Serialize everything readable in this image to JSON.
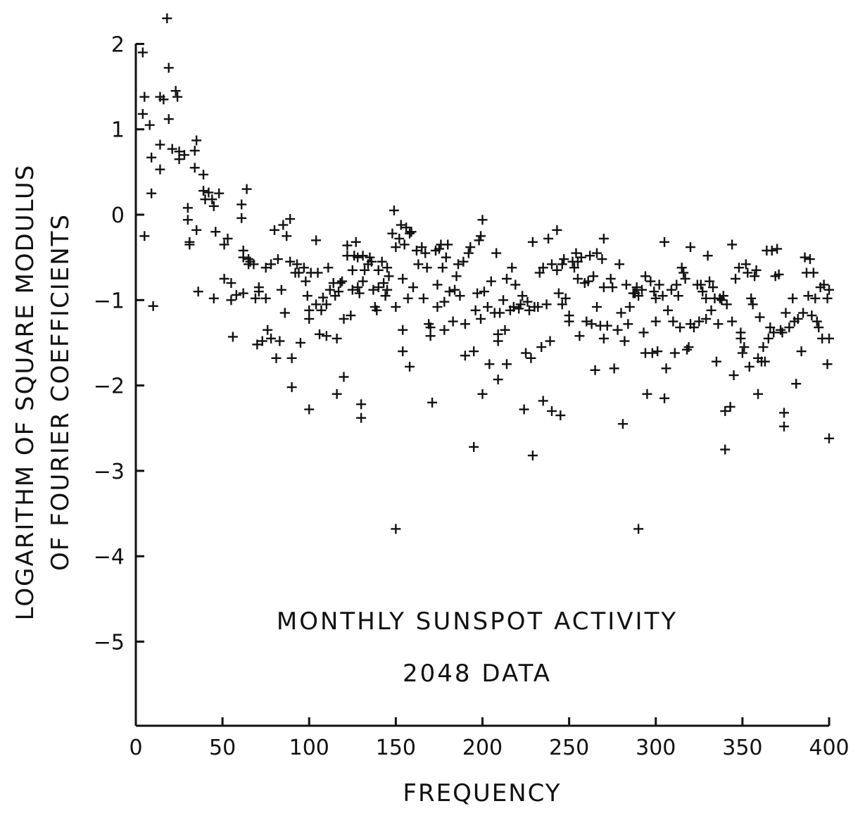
{
  "chart_data": {
    "type": "scatter",
    "marker": "plus",
    "xlabel": "FREQUENCY",
    "ylabel_lines": [
      "LOGARITHM OF SQUARE MODULUS",
      "OF FOURIER COEFFICIENTS"
    ],
    "annotations": [
      "MONTHLY SUNSPOT ACTIVITY",
      "2048 DATA"
    ],
    "xlim": [
      0,
      400
    ],
    "ylim": [
      -5.9,
      2.1
    ],
    "xticks": [
      0,
      50,
      100,
      150,
      200,
      250,
      300,
      350,
      400
    ],
    "xtick_labels": [
      "0",
      "50",
      "100",
      "150",
      "200",
      "250",
      "300",
      "350",
      "400"
    ],
    "yticks": [
      2,
      1,
      0,
      -1,
      -2,
      -3,
      -4,
      -5
    ],
    "ytick_labels": [
      "2",
      "1",
      "0",
      "−1",
      "−2",
      "−3",
      "−4",
      "−5"
    ],
    "grid": false,
    "points": [
      [
        4,
        1.9
      ],
      [
        4,
        1.18
      ],
      [
        5,
        1.38
      ],
      [
        5,
        -0.25
      ],
      [
        8,
        1.05
      ],
      [
        9,
        0.67
      ],
      [
        9,
        0.25
      ],
      [
        10,
        -1.07
      ],
      [
        14,
        1.38
      ],
      [
        14,
        0.82
      ],
      [
        14,
        0.53
      ],
      [
        16,
        1.35
      ],
      [
        18,
        2.3
      ],
      [
        19,
        1.72
      ],
      [
        19,
        1.12
      ],
      [
        21,
        0.77
      ],
      [
        23,
        1.45
      ],
      [
        24,
        1.38
      ],
      [
        25,
        0.65
      ],
      [
        25,
        0.74
      ],
      [
        28,
        0.7
      ],
      [
        30,
        0.08
      ],
      [
        30,
        -0.06
      ],
      [
        31,
        -0.32
      ],
      [
        31,
        -0.35
      ],
      [
        34,
        0.75
      ],
      [
        34,
        0.55
      ],
      [
        35,
        0.87
      ],
      [
        35,
        -0.18
      ],
      [
        36,
        -0.9
      ],
      [
        39,
        0.47
      ],
      [
        39,
        0.28
      ],
      [
        40,
        0.18
      ],
      [
        42,
        0.26
      ],
      [
        44,
        0.18
      ],
      [
        45,
        0.1
      ],
      [
        45,
        -0.98
      ],
      [
        46,
        -0.2
      ],
      [
        48,
        0.25
      ],
      [
        51,
        -0.35
      ],
      [
        51,
        -0.75
      ],
      [
        53,
        -0.28
      ],
      [
        55,
        -0.8
      ],
      [
        55,
        -1.0
      ],
      [
        56,
        -1.43
      ],
      [
        58,
        -0.94
      ],
      [
        61,
        0.12
      ],
      [
        61,
        -0.04
      ],
      [
        62,
        -0.42
      ],
      [
        62,
        -0.5
      ],
      [
        62,
        -0.92
      ],
      [
        64,
        0.3
      ],
      [
        65,
        -0.52
      ],
      [
        65,
        -0.58
      ],
      [
        66,
        -0.55
      ],
      [
        68,
        -0.58
      ],
      [
        69,
        -0.98
      ],
      [
        70,
        -1.52
      ],
      [
        71,
        -0.85
      ],
      [
        71,
        -0.9
      ],
      [
        73,
        -1.48
      ],
      [
        75,
        -0.62
      ],
      [
        75,
        -0.98
      ],
      [
        76,
        -1.35
      ],
      [
        78,
        -0.58
      ],
      [
        78,
        -1.45
      ],
      [
        80,
        -0.18
      ],
      [
        81,
        -1.68
      ],
      [
        82,
        -0.52
      ],
      [
        83,
        -1.48
      ],
      [
        84,
        -0.88
      ],
      [
        85,
        -0.12
      ],
      [
        86,
        -1.15
      ],
      [
        87,
        -0.25
      ],
      [
        89,
        -0.05
      ],
      [
        89,
        -0.55
      ],
      [
        90,
        -1.68
      ],
      [
        90,
        -2.02
      ],
      [
        92,
        -0.68
      ],
      [
        93,
        -0.58
      ],
      [
        94,
        -0.68
      ],
      [
        95,
        -1.5
      ],
      [
        97,
        -0.62
      ],
      [
        98,
        -0.78
      ],
      [
        99,
        -0.95
      ],
      [
        100,
        -1.12
      ],
      [
        100,
        -1.22
      ],
      [
        100,
        -2.28
      ],
      [
        101,
        -0.68
      ],
      [
        104,
        -0.3
      ],
      [
        104,
        -1.05
      ],
      [
        105,
        -0.68
      ],
      [
        106,
        -1.4
      ],
      [
        107,
        -1.12
      ],
      [
        108,
        -0.97
      ],
      [
        110,
        -1.42
      ],
      [
        110,
        -1.05
      ],
      [
        111,
        -0.62
      ],
      [
        112,
        -0.88
      ],
      [
        114,
        -0.8
      ],
      [
        115,
        -0.95
      ],
      [
        116,
        -1.45
      ],
      [
        116,
        -2.1
      ],
      [
        117,
        -0.9
      ],
      [
        118,
        -0.8
      ],
      [
        119,
        -0.78
      ],
      [
        120,
        -1.22
      ],
      [
        120,
        -1.9
      ],
      [
        122,
        -0.36
      ],
      [
        122,
        -0.48
      ],
      [
        124,
        -1.18
      ],
      [
        125,
        -0.65
      ],
      [
        125,
        -0.88
      ],
      [
        126,
        -0.48
      ],
      [
        127,
        -0.32
      ],
      [
        128,
        -0.5
      ],
      [
        128,
        -0.85
      ],
      [
        129,
        -0.92
      ],
      [
        130,
        -2.22
      ],
      [
        130,
        -2.38
      ],
      [
        131,
        -0.78
      ],
      [
        131,
        -0.48
      ],
      [
        132,
        -0.65
      ],
      [
        134,
        -0.58
      ],
      [
        135,
        -0.5
      ],
      [
        136,
        -0.55
      ],
      [
        137,
        -0.88
      ],
      [
        138,
        -1.08
      ],
      [
        139,
        -1.12
      ],
      [
        140,
        -0.85
      ],
      [
        140,
        -0.65
      ],
      [
        142,
        -0.55
      ],
      [
        143,
        -0.8
      ],
      [
        144,
        -0.95
      ],
      [
        145,
        -0.88
      ],
      [
        145,
        -0.62
      ],
      [
        146,
        -0.72
      ],
      [
        148,
        -0.22
      ],
      [
        149,
        0.05
      ],
      [
        150,
        -0.38
      ],
      [
        150,
        -1.08
      ],
      [
        150,
        -3.68
      ],
      [
        152,
        -0.28
      ],
      [
        153,
        -0.12
      ],
      [
        154,
        -0.75
      ],
      [
        154,
        -1.35
      ],
      [
        154,
        -1.6
      ],
      [
        155,
        -0.35
      ],
      [
        156,
        -0.15
      ],
      [
        157,
        -0.98
      ],
      [
        158,
        -0.22
      ],
      [
        158,
        -1.78
      ],
      [
        159,
        -0.2
      ],
      [
        160,
        -0.85
      ],
      [
        162,
        -0.42
      ],
      [
        163,
        -0.58
      ],
      [
        165,
        -0.38
      ],
      [
        166,
        -0.98
      ],
      [
        167,
        -0.45
      ],
      [
        168,
        -0.62
      ],
      [
        169,
        -1.28
      ],
      [
        170,
        -1.32
      ],
      [
        170,
        -1.42
      ],
      [
        171,
        -2.2
      ],
      [
        173,
        -0.42
      ],
      [
        174,
        -0.82
      ],
      [
        174,
        -1.08
      ],
      [
        175,
        -0.4
      ],
      [
        176,
        -0.35
      ],
      [
        177,
        -0.62
      ],
      [
        178,
        -1.02
      ],
      [
        178,
        -1.35
      ],
      [
        179,
        -0.5
      ],
      [
        180,
        -0.35
      ],
      [
        181,
        -0.9
      ],
      [
        183,
        -1.25
      ],
      [
        184,
        -0.88
      ],
      [
        185,
        -0.72
      ],
      [
        186,
        -0.58
      ],
      [
        187,
        -0.95
      ],
      [
        189,
        -0.55
      ],
      [
        190,
        -1.65
      ],
      [
        190,
        -1.28
      ],
      [
        192,
        -0.45
      ],
      [
        193,
        -0.38
      ],
      [
        195,
        -1.6
      ],
      [
        195,
        -2.72
      ],
      [
        196,
        -1.12
      ],
      [
        197,
        -0.92
      ],
      [
        198,
        -0.3
      ],
      [
        199,
        -0.25
      ],
      [
        199,
        -1.22
      ],
      [
        200,
        -0.06
      ],
      [
        200,
        -2.1
      ],
      [
        201,
        -0.9
      ],
      [
        203,
        -1.08
      ],
      [
        204,
        -1.75
      ],
      [
        205,
        -0.78
      ],
      [
        207,
        -1.15
      ],
      [
        208,
        -0.45
      ],
      [
        209,
        -1.4
      ],
      [
        209,
        -1.48
      ],
      [
        209,
        -1.93
      ],
      [
        210,
        -1.15
      ],
      [
        212,
        -1.0
      ],
      [
        213,
        -1.35
      ],
      [
        214,
        -1.75
      ],
      [
        214,
        -0.75
      ],
      [
        216,
        -1.12
      ],
      [
        217,
        -0.62
      ],
      [
        218,
        -1.08
      ],
      [
        219,
        -0.82
      ],
      [
        221,
        -1.1
      ],
      [
        222,
        -1.05
      ],
      [
        223,
        -0.95
      ],
      [
        224,
        -2.28
      ],
      [
        225,
        -1.62
      ],
      [
        226,
        -1.02
      ],
      [
        227,
        -1.12
      ],
      [
        228,
        -1.68
      ],
      [
        229,
        -0.32
      ],
      [
        229,
        -2.82
      ],
      [
        230,
        -1.08
      ],
      [
        232,
        -1.08
      ],
      [
        233,
        -0.68
      ],
      [
        234,
        -1.55
      ],
      [
        235,
        -0.62
      ],
      [
        235,
        -2.18
      ],
      [
        237,
        -1.05
      ],
      [
        238,
        -0.28
      ],
      [
        239,
        -1.48
      ],
      [
        240,
        -0.58
      ],
      [
        240,
        -2.3
      ],
      [
        243,
        -0.18
      ],
      [
        243,
        -0.65
      ],
      [
        244,
        -0.92
      ],
      [
        245,
        -2.35
      ],
      [
        246,
        -0.58
      ],
      [
        246,
        -1.05
      ],
      [
        247,
        -0.52
      ],
      [
        248,
        -0.98
      ],
      [
        250,
        -1.25
      ],
      [
        250,
        -1.18
      ],
      [
        252,
        -0.55
      ],
      [
        253,
        -0.62
      ],
      [
        254,
        -0.45
      ],
      [
        255,
        -0.75
      ],
      [
        255,
        -0.55
      ],
      [
        256,
        -1.42
      ],
      [
        257,
        -0.5
      ],
      [
        259,
        -0.8
      ],
      [
        260,
        -1.25
      ],
      [
        261,
        -0.78
      ],
      [
        262,
        -0.48
      ],
      [
        263,
        -1.28
      ],
      [
        264,
        -0.72
      ],
      [
        265,
        -1.82
      ],
      [
        266,
        -1.08
      ],
      [
        266,
        -0.45
      ],
      [
        268,
        -1.3
      ],
      [
        269,
        -0.52
      ],
      [
        270,
        -0.85
      ],
      [
        270,
        -0.28
      ],
      [
        270,
        -1.45
      ],
      [
        272,
        -1.3
      ],
      [
        274,
        -0.75
      ],
      [
        275,
        -0.85
      ],
      [
        276,
        -1.8
      ],
      [
        278,
        -1.35
      ],
      [
        279,
        -0.58
      ],
      [
        280,
        -1.15
      ],
      [
        281,
        -2.45
      ],
      [
        282,
        -1.48
      ],
      [
        283,
        -0.82
      ],
      [
        284,
        -1.28
      ],
      [
        285,
        -1.08
      ],
      [
        287,
        -0.92
      ],
      [
        288,
        -0.92
      ],
      [
        289,
        -0.85
      ],
      [
        290,
        -0.95
      ],
      [
        290,
        -3.68
      ],
      [
        292,
        -0.88
      ],
      [
        293,
        -1.38
      ],
      [
        294,
        -1.62
      ],
      [
        294,
        -0.72
      ],
      [
        295,
        -2.1
      ],
      [
        297,
        -0.78
      ],
      [
        298,
        -1.62
      ],
      [
        299,
        -0.9
      ],
      [
        300,
        -1.25
      ],
      [
        300,
        -0.98
      ],
      [
        301,
        -1.6
      ],
      [
        302,
        -0.82
      ],
      [
        304,
        -0.95
      ],
      [
        305,
        -0.32
      ],
      [
        305,
        -2.15
      ],
      [
        306,
        -1.8
      ],
      [
        307,
        -1.12
      ],
      [
        309,
        -0.88
      ],
      [
        310,
        -1.25
      ],
      [
        311,
        -1.62
      ],
      [
        312,
        -0.82
      ],
      [
        313,
        -0.95
      ],
      [
        314,
        -1.32
      ],
      [
        315,
        -0.62
      ],
      [
        316,
        -0.68
      ],
      [
        317,
        -0.75
      ],
      [
        318,
        -1.58
      ],
      [
        319,
        -1.55
      ],
      [
        320,
        -1.28
      ],
      [
        320,
        -0.38
      ],
      [
        322,
        -1.32
      ],
      [
        324,
        -0.82
      ],
      [
        325,
        -1.25
      ],
      [
        326,
        -0.82
      ],
      [
        327,
        -0.9
      ],
      [
        329,
        -1.22
      ],
      [
        329,
        -0.98
      ],
      [
        330,
        -0.48
      ],
      [
        331,
        -0.78
      ],
      [
        332,
        -1.12
      ],
      [
        333,
        -0.85
      ],
      [
        334,
        -0.98
      ],
      [
        335,
        -1.72
      ],
      [
        336,
        -1.28
      ],
      [
        337,
        -0.98
      ],
      [
        338,
        -1.0
      ],
      [
        339,
        -0.95
      ],
      [
        340,
        -2.3
      ],
      [
        340,
        -2.75
      ],
      [
        341,
        -1.05
      ],
      [
        343,
        -2.25
      ],
      [
        344,
        -0.35
      ],
      [
        344,
        -1.25
      ],
      [
        345,
        -1.88
      ],
      [
        346,
        -0.75
      ],
      [
        348,
        -0.62
      ],
      [
        349,
        -1.45
      ],
      [
        349,
        -1.38
      ],
      [
        350,
        -1.62
      ],
      [
        351,
        -1.55
      ],
      [
        352,
        -0.58
      ],
      [
        353,
        -0.68
      ],
      [
        354,
        -1.78
      ],
      [
        355,
        -0.98
      ],
      [
        356,
        -1.05
      ],
      [
        357,
        -0.72
      ],
      [
        358,
        -0.65
      ],
      [
        359,
        -1.68
      ],
      [
        359,
        -2.1
      ],
      [
        360,
        -1.2
      ],
      [
        361,
        -1.72
      ],
      [
        362,
        -1.55
      ],
      [
        363,
        -1.72
      ],
      [
        364,
        -0.42
      ],
      [
        365,
        -1.45
      ],
      [
        366,
        -1.32
      ],
      [
        367,
        -0.42
      ],
      [
        368,
        -1.38
      ],
      [
        369,
        -0.72
      ],
      [
        370,
        -0.4
      ],
      [
        371,
        -0.7
      ],
      [
        372,
        -1.35
      ],
      [
        373,
        -1.38
      ],
      [
        374,
        -2.32
      ],
      [
        374,
        -2.48
      ],
      [
        375,
        -1.15
      ],
      [
        377,
        -1.32
      ],
      [
        379,
        -0.98
      ],
      [
        380,
        -1.25
      ],
      [
        381,
        -1.98
      ],
      [
        382,
        -1.22
      ],
      [
        384,
        -1.6
      ],
      [
        385,
        -1.15
      ],
      [
        386,
        -0.5
      ],
      [
        387,
        -0.68
      ],
      [
        388,
        -0.95
      ],
      [
        389,
        -0.52
      ],
      [
        390,
        -1.18
      ],
      [
        391,
        -0.68
      ],
      [
        392,
        -0.98
      ],
      [
        393,
        -1.25
      ],
      [
        394,
        -1.32
      ],
      [
        395,
        -0.85
      ],
      [
        396,
        -1.45
      ],
      [
        397,
        -0.82
      ],
      [
        399,
        -1.75
      ],
      [
        399,
        -0.98
      ],
      [
        400,
        -0.88
      ],
      [
        400,
        -1.45
      ],
      [
        400,
        -2.62
      ]
    ]
  }
}
